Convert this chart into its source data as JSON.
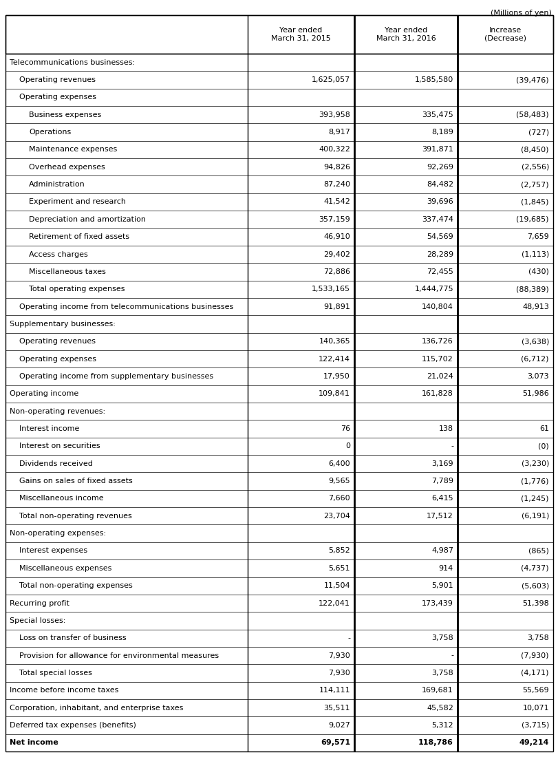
{
  "header_note": "(Millions of yen)",
  "col_headers": [
    "",
    "Year ended\nMarch 31, 2015",
    "Year ended\nMarch 31, 2016",
    "Increase\n(Decrease)"
  ],
  "rows": [
    {
      "label": "Telecommunications businesses:",
      "indent": 0,
      "v1": "",
      "v2": "",
      "v3": "",
      "bold": false
    },
    {
      "label": "Operating revenues",
      "indent": 1,
      "v1": "1,625,057",
      "v2": "1,585,580",
      "v3": "(39,476)",
      "bold": false
    },
    {
      "label": "Operating expenses",
      "indent": 1,
      "v1": "",
      "v2": "",
      "v3": "",
      "bold": false
    },
    {
      "label": "Business expenses",
      "indent": 2,
      "v1": "393,958",
      "v2": "335,475",
      "v3": "(58,483)",
      "bold": false
    },
    {
      "label": "Operations",
      "indent": 2,
      "v1": "8,917",
      "v2": "8,189",
      "v3": "(727)",
      "bold": false
    },
    {
      "label": "Maintenance expenses",
      "indent": 2,
      "v1": "400,322",
      "v2": "391,871",
      "v3": "(8,450)",
      "bold": false
    },
    {
      "label": "Overhead expenses",
      "indent": 2,
      "v1": "94,826",
      "v2": "92,269",
      "v3": "(2,556)",
      "bold": false
    },
    {
      "label": "Administration",
      "indent": 2,
      "v1": "87,240",
      "v2": "84,482",
      "v3": "(2,757)",
      "bold": false
    },
    {
      "label": "Experiment and research",
      "indent": 2,
      "v1": "41,542",
      "v2": "39,696",
      "v3": "(1,845)",
      "bold": false
    },
    {
      "label": "Depreciation and amortization",
      "indent": 2,
      "v1": "357,159",
      "v2": "337,474",
      "v3": "(19,685)",
      "bold": false
    },
    {
      "label": "Retirement of fixed assets",
      "indent": 2,
      "v1": "46,910",
      "v2": "54,569",
      "v3": "7,659",
      "bold": false
    },
    {
      "label": "Access charges",
      "indent": 2,
      "v1": "29,402",
      "v2": "28,289",
      "v3": "(1,113)",
      "bold": false
    },
    {
      "label": "Miscellaneous taxes",
      "indent": 2,
      "v1": "72,886",
      "v2": "72,455",
      "v3": "(430)",
      "bold": false
    },
    {
      "label": "Total operating expenses",
      "indent": 2,
      "v1": "1,533,165",
      "v2": "1,444,775",
      "v3": "(88,389)",
      "bold": false
    },
    {
      "label": "Operating income from telecommunications businesses",
      "indent": 1,
      "v1": "91,891",
      "v2": "140,804",
      "v3": "48,913",
      "bold": false
    },
    {
      "label": "Supplementary businesses:",
      "indent": 0,
      "v1": "",
      "v2": "",
      "v3": "",
      "bold": false
    },
    {
      "label": "Operating revenues",
      "indent": 1,
      "v1": "140,365",
      "v2": "136,726",
      "v3": "(3,638)",
      "bold": false
    },
    {
      "label": "Operating expenses",
      "indent": 1,
      "v1": "122,414",
      "v2": "115,702",
      "v3": "(6,712)",
      "bold": false
    },
    {
      "label": "Operating income from supplementary businesses",
      "indent": 1,
      "v1": "17,950",
      "v2": "21,024",
      "v3": "3,073",
      "bold": false
    },
    {
      "label": "Operating income",
      "indent": 0,
      "v1": "109,841",
      "v2": "161,828",
      "v3": "51,986",
      "bold": false
    },
    {
      "label": "Non-operating revenues:",
      "indent": 0,
      "v1": "",
      "v2": "",
      "v3": "",
      "bold": false
    },
    {
      "label": "Interest income",
      "indent": 1,
      "v1": "76",
      "v2": "138",
      "v3": "61",
      "bold": false
    },
    {
      "label": "Interest on securities",
      "indent": 1,
      "v1": "0",
      "v2": "-",
      "v3": "(0)",
      "bold": false
    },
    {
      "label": "Dividends received",
      "indent": 1,
      "v1": "6,400",
      "v2": "3,169",
      "v3": "(3,230)",
      "bold": false
    },
    {
      "label": "Gains on sales of fixed assets",
      "indent": 1,
      "v1": "9,565",
      "v2": "7,789",
      "v3": "(1,776)",
      "bold": false
    },
    {
      "label": "Miscellaneous income",
      "indent": 1,
      "v1": "7,660",
      "v2": "6,415",
      "v3": "(1,245)",
      "bold": false
    },
    {
      "label": "Total non-operating revenues",
      "indent": 1,
      "v1": "23,704",
      "v2": "17,512",
      "v3": "(6,191)",
      "bold": false
    },
    {
      "label": "Non-operating expenses:",
      "indent": 0,
      "v1": "",
      "v2": "",
      "v3": "",
      "bold": false
    },
    {
      "label": "Interest expenses",
      "indent": 1,
      "v1": "5,852",
      "v2": "4,987",
      "v3": "(865)",
      "bold": false
    },
    {
      "label": "Miscellaneous expenses",
      "indent": 1,
      "v1": "5,651",
      "v2": "914",
      "v3": "(4,737)",
      "bold": false
    },
    {
      "label": "Total non-operating expenses",
      "indent": 1,
      "v1": "11,504",
      "v2": "5,901",
      "v3": "(5,603)",
      "bold": false
    },
    {
      "label": "Recurring profit",
      "indent": 0,
      "v1": "122,041",
      "v2": "173,439",
      "v3": "51,398",
      "bold": false
    },
    {
      "label": "Special losses:",
      "indent": 0,
      "v1": "",
      "v2": "",
      "v3": "",
      "bold": false
    },
    {
      "label": "Loss on transfer of business",
      "indent": 1,
      "v1": "-",
      "v2": "3,758",
      "v3": "3,758",
      "bold": false
    },
    {
      "label": "Provision for allowance for environmental measures",
      "indent": 1,
      "v1": "7,930",
      "v2": "-",
      "v3": "(7,930)",
      "bold": false
    },
    {
      "label": "Total special losses",
      "indent": 1,
      "v1": "7,930",
      "v2": "3,758",
      "v3": "(4,171)",
      "bold": false
    },
    {
      "label": "Income before income taxes",
      "indent": 0,
      "v1": "114,111",
      "v2": "169,681",
      "v3": "55,569",
      "bold": false
    },
    {
      "label": "Corporation, inhabitant, and enterprise taxes",
      "indent": 0,
      "v1": "35,511",
      "v2": "45,582",
      "v3": "10,071",
      "bold": false
    },
    {
      "label": "Deferred tax expenses (benefits)",
      "indent": 0,
      "v1": "9,027",
      "v2": "5,312",
      "v3": "(3,715)",
      "bold": false
    },
    {
      "label": "Net income",
      "indent": 0,
      "v1": "69,571",
      "v2": "118,786",
      "v3": "49,214",
      "bold": true
    }
  ],
  "font_size": 8.0,
  "header_font_size": 8.0,
  "background_color": "#ffffff",
  "border_color": "#000000",
  "text_color": "#000000",
  "note_fontsize": 8.0
}
